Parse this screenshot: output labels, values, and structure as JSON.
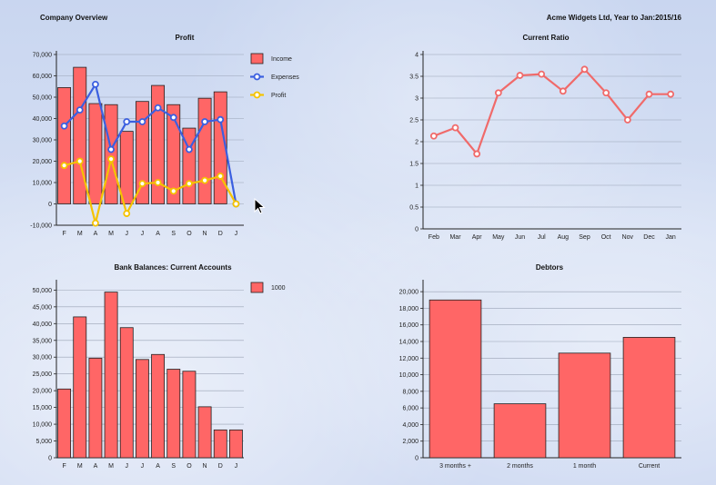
{
  "header": {
    "left": "Company Overview",
    "right": "Acme Widgets Ltd, Year to Jan:2015/16"
  },
  "colors": {
    "bar_fill": "#ff6666",
    "bar_stroke": "#222222",
    "expenses": "#3b5fe0",
    "profit": "#f5c300",
    "ratio_line": "#f06a6a",
    "axis": "#222222",
    "grid": "#9aa3b5"
  },
  "chart_data": [
    {
      "type": "bar",
      "title": "Profit",
      "categories": [
        "F",
        "M",
        "A",
        "M",
        "J",
        "J",
        "A",
        "S",
        "O",
        "N",
        "D",
        "J"
      ],
      "yticks": [
        "-10,000",
        "0",
        "10,000",
        "20,000",
        "30,000",
        "40,000",
        "50,000",
        "60,000",
        "70,000"
      ],
      "ylim": [
        -10000,
        70000
      ],
      "legend_position": "right",
      "series": [
        {
          "name": "Income",
          "kind": "bar",
          "values": [
            54500,
            64000,
            47000,
            46500,
            34000,
            48000,
            55500,
            46500,
            35500,
            49500,
            52500,
            0
          ]
        },
        {
          "name": "Expenses",
          "kind": "line",
          "values": [
            36500,
            44000,
            56000,
            25500,
            38500,
            38500,
            45000,
            40500,
            25500,
            38500,
            39500,
            0
          ]
        },
        {
          "name": "Profit",
          "kind": "line",
          "values": [
            18000,
            20000,
            -9000,
            21000,
            -4500,
            9500,
            10000,
            6000,
            9500,
            11000,
            13000,
            0
          ]
        }
      ]
    },
    {
      "type": "line",
      "title": "Current Ratio",
      "categories": [
        "Feb",
        "Mar",
        "Apr",
        "May",
        "Jun",
        "Jul",
        "Aug",
        "Sep",
        "Oct",
        "Nov",
        "Dec",
        "Jan"
      ],
      "yticks": [
        "0",
        "0.5",
        "1",
        "1.5",
        "2",
        "2.5",
        "3",
        "3.5",
        "4"
      ],
      "ylim": [
        0,
        4
      ],
      "series": [
        {
          "values": [
            2.13,
            2.32,
            1.72,
            3.12,
            3.52,
            3.55,
            3.16,
            3.66,
            3.12,
            2.5,
            3.09,
            3.09
          ]
        }
      ]
    },
    {
      "type": "bar",
      "title": "Bank Balances: Current Accounts",
      "categories": [
        "F",
        "M",
        "A",
        "M",
        "J",
        "J",
        "A",
        "S",
        "O",
        "N",
        "D",
        "J"
      ],
      "yticks": [
        "0",
        "5,000",
        "10,000",
        "15,000",
        "20,000",
        "25,000",
        "30,000",
        "35,000",
        "40,000",
        "45,000",
        "50,000"
      ],
      "ylim": [
        0,
        52000
      ],
      "legend_position": "right",
      "series": [
        {
          "name": "1000",
          "values": [
            20500,
            42000,
            29700,
            49400,
            38800,
            29300,
            30800,
            26400,
            25800,
            15200,
            8300,
            8300
          ]
        }
      ]
    },
    {
      "type": "bar",
      "title": "Debtors",
      "categories": [
        "3 months +",
        "2 months",
        "1 month",
        "Current"
      ],
      "yticks": [
        "0",
        "2,000",
        "4,000",
        "6,000",
        "8,000",
        "10,000",
        "12,000",
        "14,000",
        "16,000",
        "18,000",
        "20,000"
      ],
      "ylim": [
        0,
        21000
      ],
      "series": [
        {
          "values": [
            19000,
            6500,
            12600,
            14500
          ]
        }
      ]
    }
  ]
}
